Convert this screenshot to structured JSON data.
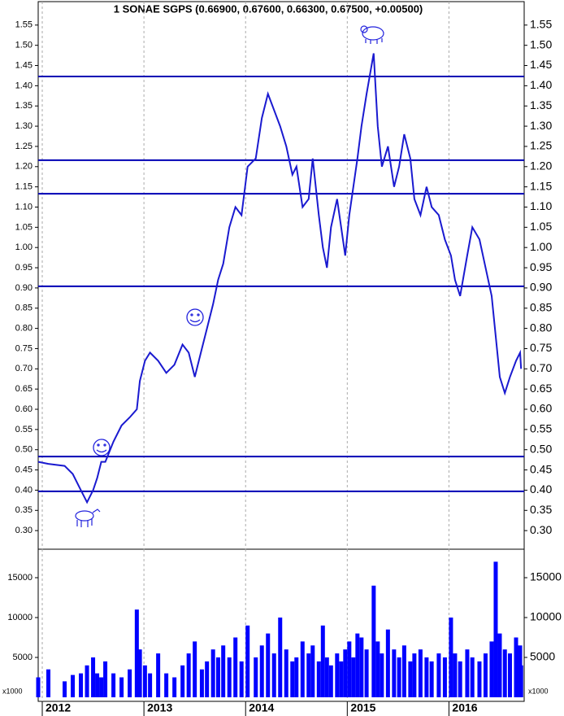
{
  "chart_data": [
    {
      "type": "line",
      "title": "1 SONAE SGPS (0.66900, 0.67600, 0.66300, 0.67500, +0.00500)",
      "x": [
        2011.96,
        2012.06,
        2012.22,
        2012.3,
        2012.38,
        2012.44,
        2012.5,
        2012.54,
        2012.58,
        2012.62,
        2012.7,
        2012.78,
        2012.86,
        2012.93,
        2012.96,
        2013.01,
        2013.06,
        2013.14,
        2013.22,
        2013.3,
        2013.38,
        2013.44,
        2013.5,
        2013.57,
        2013.62,
        2013.68,
        2013.73,
        2013.78,
        2013.84,
        2013.9,
        2013.96,
        2014.02,
        2014.1,
        2014.16,
        2014.22,
        2014.28,
        2014.34,
        2014.4,
        2014.46,
        2014.5,
        2014.56,
        2014.62,
        2014.66,
        2014.72,
        2014.76,
        2014.8,
        2014.84,
        2014.9,
        2014.94,
        2014.98,
        2015.02,
        2015.06,
        2015.1,
        2015.14,
        2015.19,
        2015.26,
        2015.3,
        2015.34,
        2015.4,
        2015.46,
        2015.51,
        2015.56,
        2015.62,
        2015.66,
        2015.72,
        2015.78,
        2015.83,
        2015.9,
        2015.96,
        2016.02,
        2016.06,
        2016.11,
        2016.18,
        2016.23,
        2016.3,
        2016.36,
        2016.42,
        2016.46,
        2016.5,
        2016.55,
        2016.6,
        2016.66,
        2016.7,
        2016.71
      ],
      "series": [
        {
          "color": "#1a1ad0",
          "values": [
            0.47,
            0.465,
            0.46,
            0.44,
            0.4,
            0.37,
            0.4,
            0.43,
            0.47,
            0.47,
            0.52,
            0.56,
            0.58,
            0.6,
            0.67,
            0.72,
            0.74,
            0.72,
            0.69,
            0.71,
            0.76,
            0.74,
            0.68,
            0.75,
            0.8,
            0.86,
            0.92,
            0.96,
            1.05,
            1.1,
            1.08,
            1.2,
            1.22,
            1.32,
            1.38,
            1.34,
            1.3,
            1.25,
            1.18,
            1.2,
            1.1,
            1.12,
            1.22,
            1.08,
            1.0,
            0.95,
            1.05,
            1.12,
            1.05,
            0.98,
            1.08,
            1.15,
            1.22,
            1.3,
            1.38,
            1.48,
            1.3,
            1.2,
            1.25,
            1.15,
            1.2,
            1.28,
            1.22,
            1.12,
            1.08,
            1.15,
            1.1,
            1.08,
            1.02,
            0.98,
            0.92,
            0.88,
            0.98,
            1.05,
            1.02,
            0.95,
            0.88,
            0.78,
            0.68,
            0.64,
            0.68,
            0.72,
            0.74,
            0.7
          ]
        }
      ],
      "levels": [
        1.423,
        1.216,
        1.133,
        0.904,
        0.483,
        0.397
      ],
      "level_color": "#0000b4",
      "xlim": [
        2011.96,
        2016.74
      ],
      "xticks": [
        2012,
        2013,
        2014,
        2015,
        2016
      ],
      "ylim": [
        0.254,
        1.612
      ],
      "yticks": [
        {
          "value": 0.3,
          "label": "0.30"
        },
        0.35,
        {
          "value": 0.4,
          "label": "0.40"
        },
        0.45,
        {
          "value": 0.5,
          "label": "0.50"
        },
        0.55,
        {
          "value": 0.6,
          "label": "0.60"
        },
        0.65,
        {
          "value": 0.7,
          "label": "0.70"
        },
        0.75,
        {
          "value": 0.8,
          "label": "0.80"
        },
        0.85,
        {
          "value": 0.9,
          "label": "0.90"
        },
        0.95,
        {
          "value": 1.0,
          "label": "1.00"
        },
        1.05,
        {
          "value": 1.1,
          "label": "1.10"
        },
        1.15,
        {
          "value": 1.2,
          "label": "1.20"
        },
        1.25,
        {
          "value": 1.3,
          "label": "1.30"
        },
        1.35,
        {
          "value": 1.4,
          "label": "1.40"
        },
        1.45,
        {
          "value": 1.5,
          "label": "1.50"
        },
        1.55
      ]
    },
    {
      "type": "bar",
      "unit": "x1000",
      "color": "#0000ff",
      "x": [
        2011.96,
        2012.06,
        2012.22,
        2012.3,
        2012.38,
        2012.44,
        2012.5,
        2012.54,
        2012.58,
        2012.62,
        2012.7,
        2012.78,
        2012.86,
        2012.93,
        2012.96,
        2013.01,
        2013.06,
        2013.14,
        2013.22,
        2013.3,
        2013.38,
        2013.44,
        2013.5,
        2013.57,
        2013.62,
        2013.68,
        2013.73,
        2013.78,
        2013.84,
        2013.9,
        2013.96,
        2014.02,
        2014.1,
        2014.16,
        2014.22,
        2014.28,
        2014.34,
        2014.4,
        2014.46,
        2014.5,
        2014.56,
        2014.62,
        2014.66,
        2014.72,
        2014.76,
        2014.8,
        2014.84,
        2014.9,
        2014.94,
        2014.98,
        2015.02,
        2015.06,
        2015.1,
        2015.14,
        2015.19,
        2015.26,
        2015.3,
        2015.34,
        2015.4,
        2015.46,
        2015.51,
        2015.56,
        2015.62,
        2015.66,
        2015.72,
        2015.78,
        2015.83,
        2015.9,
        2015.96,
        2016.02,
        2016.06,
        2016.11,
        2016.18,
        2016.23,
        2016.3,
        2016.36,
        2016.42,
        2016.46,
        2016.5,
        2016.55,
        2016.6,
        2016.66,
        2016.7,
        2016.71
      ],
      "values": [
        2500,
        3500,
        2000,
        2800,
        3000,
        4000,
        5000,
        3000,
        2500,
        4500,
        3000,
        2500,
        3500,
        11000,
        6000,
        4000,
        3000,
        5500,
        3000,
        2500,
        4000,
        5500,
        7000,
        3500,
        4500,
        6000,
        5000,
        6500,
        5000,
        7500,
        4500,
        9000,
        5000,
        6500,
        8000,
        5500,
        10000,
        6000,
        4500,
        5000,
        7000,
        5500,
        6500,
        4500,
        9000,
        5000,
        4000,
        5500,
        4500,
        6000,
        7000,
        5000,
        8000,
        7500,
        6000,
        14000,
        7000,
        5500,
        8500,
        6000,
        5000,
        6500,
        4500,
        5500,
        6000,
        5000,
        4500,
        5500,
        5000,
        10000,
        5500,
        4500,
        6000,
        5000,
        4500,
        5500,
        7000,
        17000,
        8000,
        6000,
        5500,
        7500,
        6500,
        4000
      ],
      "xlim": [
        2011.96,
        2016.74
      ],
      "xticks": [
        2012,
        2013,
        2014,
        2015,
        2016
      ],
      "ylim": [
        0,
        18570
      ],
      "yticks": [
        5000,
        10000,
        15000
      ]
    }
  ]
}
